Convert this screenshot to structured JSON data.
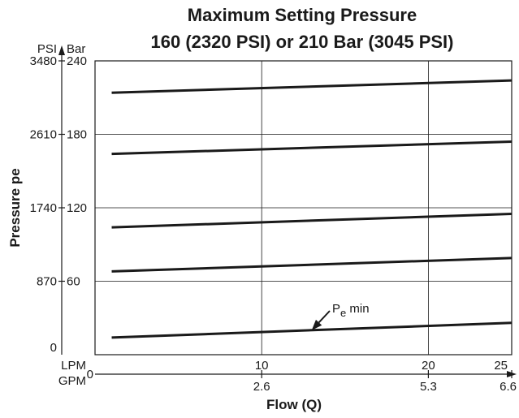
{
  "chart_data": {
    "type": "line",
    "title": "Maximum Setting Pressure",
    "subtitle": "160 (2320 PSI) or 210 Bar (3045 PSI)",
    "xlabel": "Flow (Q)",
    "ylabel": "Pressure pe",
    "x_unit_primary": "LPM",
    "x_unit_secondary": "GPM",
    "y_unit_primary": "Bar",
    "y_unit_secondary": "PSI",
    "xlim": [
      0,
      25
    ],
    "ylim": [
      0,
      240
    ],
    "grid": true,
    "x_ticks": [
      {
        "value": 10,
        "lpm": "10",
        "gpm": "2.6"
      },
      {
        "value": 20,
        "lpm": "20",
        "gpm": "5.3"
      },
      {
        "value": 25,
        "lpm": "25",
        "gpm": "6.6"
      }
    ],
    "x_origin_label": "0",
    "y_ticks": [
      {
        "value": 0,
        "bar": "",
        "psi": "0"
      },
      {
        "value": 60,
        "bar": "60",
        "psi": "870"
      },
      {
        "value": 120,
        "bar": "120",
        "psi": "1740"
      },
      {
        "value": 180,
        "bar": "180",
        "psi": "2610"
      },
      {
        "value": 240,
        "bar": "240",
        "psi": "3480"
      }
    ],
    "series": [
      {
        "x": [
          1,
          25
        ],
        "y": [
          14,
          26
        ]
      },
      {
        "x": [
          1,
          25
        ],
        "y": [
          68,
          79
        ]
      },
      {
        "x": [
          1,
          25
        ],
        "y": [
          104,
          115
        ]
      },
      {
        "x": [
          1,
          25
        ],
        "y": [
          164,
          174
        ]
      },
      {
        "x": [
          1,
          25
        ],
        "y": [
          214,
          224
        ]
      }
    ],
    "annotation": {
      "label": "P",
      "subscript": "e",
      "suffix": " min",
      "target": {
        "x": 13,
        "y": 20
      }
    }
  }
}
